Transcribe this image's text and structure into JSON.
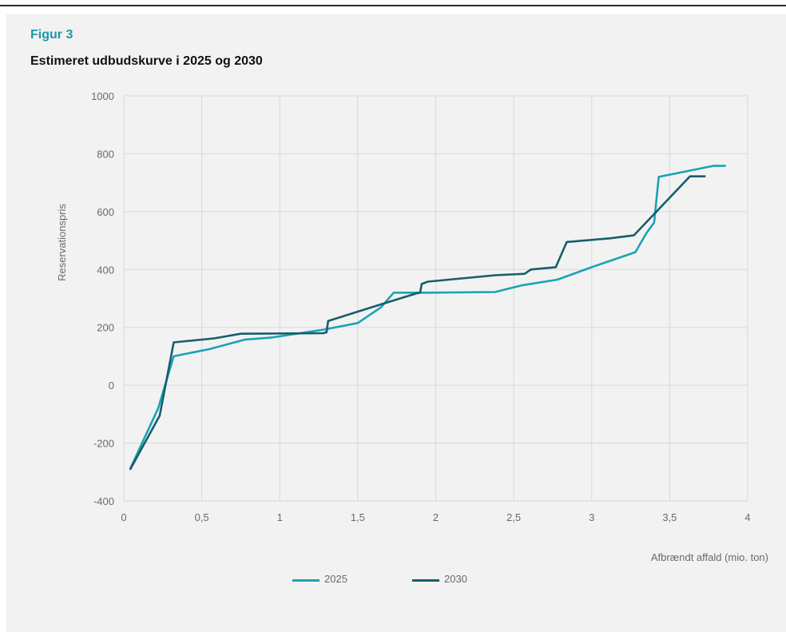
{
  "figure": {
    "label": "Figur 3",
    "title": "Estimeret udbudskurve i 2025 og 2030"
  },
  "colors": {
    "accent": "#1a9aa8",
    "series_2025": "#1aa3b4",
    "series_2030": "#185e6b",
    "grid": "#d9d9d9",
    "panel_bg": "#f2f2f2"
  },
  "chart_data": {
    "type": "line",
    "ylabel": "Reservationspris",
    "xlabel": "Afbrændt affald (mio. ton)",
    "xlim": [
      0,
      4
    ],
    "ylim": [
      -400,
      1000
    ],
    "xticks": [
      0,
      0.5,
      1,
      1.5,
      2,
      2.5,
      3,
      3.5,
      4
    ],
    "xtick_labels": [
      "0",
      "0,5",
      "1",
      "1,5",
      "2",
      "2,5",
      "3",
      "3,5",
      "4"
    ],
    "yticks": [
      -400,
      -200,
      0,
      200,
      400,
      600,
      800,
      1000
    ],
    "ytick_labels": [
      "-400",
      "-200",
      "0",
      "200",
      "400",
      "600",
      "800",
      "1000"
    ],
    "grid": true,
    "legend_position": "bottom-center",
    "series": [
      {
        "name": "2025",
        "points": [
          [
            0.04,
            -290
          ],
          [
            0.22,
            -80
          ],
          [
            0.32,
            100
          ],
          [
            0.55,
            125
          ],
          [
            0.78,
            158
          ],
          [
            0.95,
            165
          ],
          [
            1.28,
            192
          ],
          [
            1.5,
            215
          ],
          [
            1.65,
            270
          ],
          [
            1.73,
            320
          ],
          [
            1.8,
            320
          ],
          [
            1.95,
            320
          ],
          [
            2.38,
            322
          ],
          [
            2.55,
            345
          ],
          [
            2.78,
            365
          ],
          [
            3.0,
            408
          ],
          [
            3.28,
            460
          ],
          [
            3.35,
            525
          ],
          [
            3.4,
            562
          ],
          [
            3.43,
            720
          ],
          [
            3.78,
            758
          ],
          [
            3.86,
            758
          ]
        ]
      },
      {
        "name": "2030",
        "points": [
          [
            0.04,
            -292
          ],
          [
            0.23,
            -105
          ],
          [
            0.32,
            148
          ],
          [
            0.58,
            162
          ],
          [
            0.75,
            178
          ],
          [
            1.28,
            180
          ],
          [
            1.3,
            183
          ],
          [
            1.31,
            222
          ],
          [
            1.58,
            268
          ],
          [
            1.88,
            318
          ],
          [
            1.9,
            320
          ],
          [
            1.91,
            350
          ],
          [
            1.95,
            358
          ],
          [
            2.38,
            380
          ],
          [
            2.57,
            385
          ],
          [
            2.61,
            400
          ],
          [
            2.77,
            408
          ],
          [
            2.84,
            495
          ],
          [
            3.12,
            508
          ],
          [
            3.27,
            518
          ],
          [
            3.63,
            722
          ],
          [
            3.73,
            722
          ]
        ]
      }
    ]
  }
}
